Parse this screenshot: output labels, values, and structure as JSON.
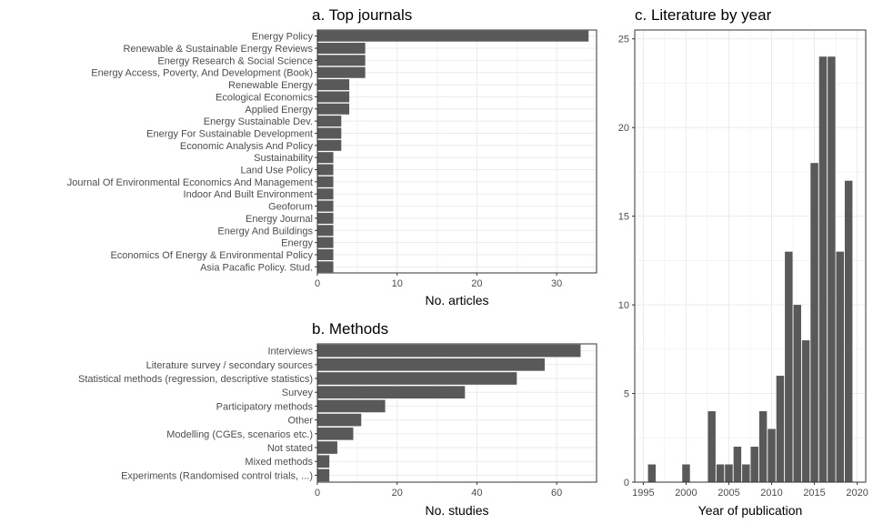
{
  "chart_data": [
    {
      "type": "bar",
      "orientation": "horizontal",
      "title": "a. Top journals",
      "xlabel": "No. articles",
      "ylabel": "",
      "xlim": [
        0,
        35
      ],
      "xticks": [
        0,
        10,
        20,
        30
      ],
      "grid": true,
      "color": "#595959",
      "categories": [
        "Energy Policy",
        "Renewable & Sustainable Energy Reviews",
        "Energy Research & Social Science",
        "Energy Access, Poverty, And Development (Book)",
        "Renewable Energy",
        "Ecological Economics",
        "Applied Energy",
        "Energy Sustainable Dev.",
        "Energy For Sustainable Development",
        "Economic Analysis And Policy",
        "Sustainability",
        "Land Use Policy",
        "Journal Of Environmental Economics And Management",
        "Indoor And Built Environment",
        "Geoforum",
        "Energy Journal",
        "Energy And Buildings",
        "Energy",
        "Economics Of Energy & Environmental Policy",
        "Asia Pacafic Policy. Stud."
      ],
      "values": [
        34,
        6,
        6,
        6,
        4,
        4,
        4,
        3,
        3,
        3,
        2,
        2,
        2,
        2,
        2,
        2,
        2,
        2,
        2,
        2
      ]
    },
    {
      "type": "bar",
      "orientation": "horizontal",
      "title": "b. Methods",
      "xlabel": "No. studies",
      "ylabel": "",
      "xlim": [
        0,
        70
      ],
      "xticks": [
        0,
        20,
        40,
        60
      ],
      "grid": true,
      "color": "#595959",
      "categories": [
        "Interviews",
        "Literature survey / secondary sources",
        "Statistical methods (regression, descriptive statistics)",
        "Survey",
        "Participatory methods",
        "Other",
        "Modelling (CGEs, scenarios etc.)",
        "Not stated",
        "Mixed methods",
        "Experiments (Randomised control trials, ...)"
      ],
      "values": [
        66,
        57,
        50,
        37,
        17,
        11,
        9,
        5,
        3,
        3
      ]
    },
    {
      "type": "bar",
      "orientation": "vertical",
      "title": "c. Literature by year",
      "xlabel": "Year of publication",
      "ylabel": "",
      "xlim": [
        1994,
        2021
      ],
      "ylim": [
        0,
        25.5
      ],
      "xticks": [
        1995,
        2000,
        2005,
        2010,
        2015,
        2020
      ],
      "yticks": [
        0,
        5,
        10,
        15,
        20,
        25
      ],
      "grid": true,
      "color": "#595959",
      "x": [
        1996,
        2000,
        2003,
        2004,
        2005,
        2006,
        2007,
        2008,
        2009,
        2010,
        2011,
        2012,
        2013,
        2014,
        2015,
        2016,
        2017,
        2018,
        2019
      ],
      "values": [
        1,
        1,
        4,
        1,
        1,
        2,
        1,
        2,
        4,
        3,
        6,
        13,
        10,
        8,
        18,
        24,
        24,
        13,
        17
      ]
    }
  ]
}
